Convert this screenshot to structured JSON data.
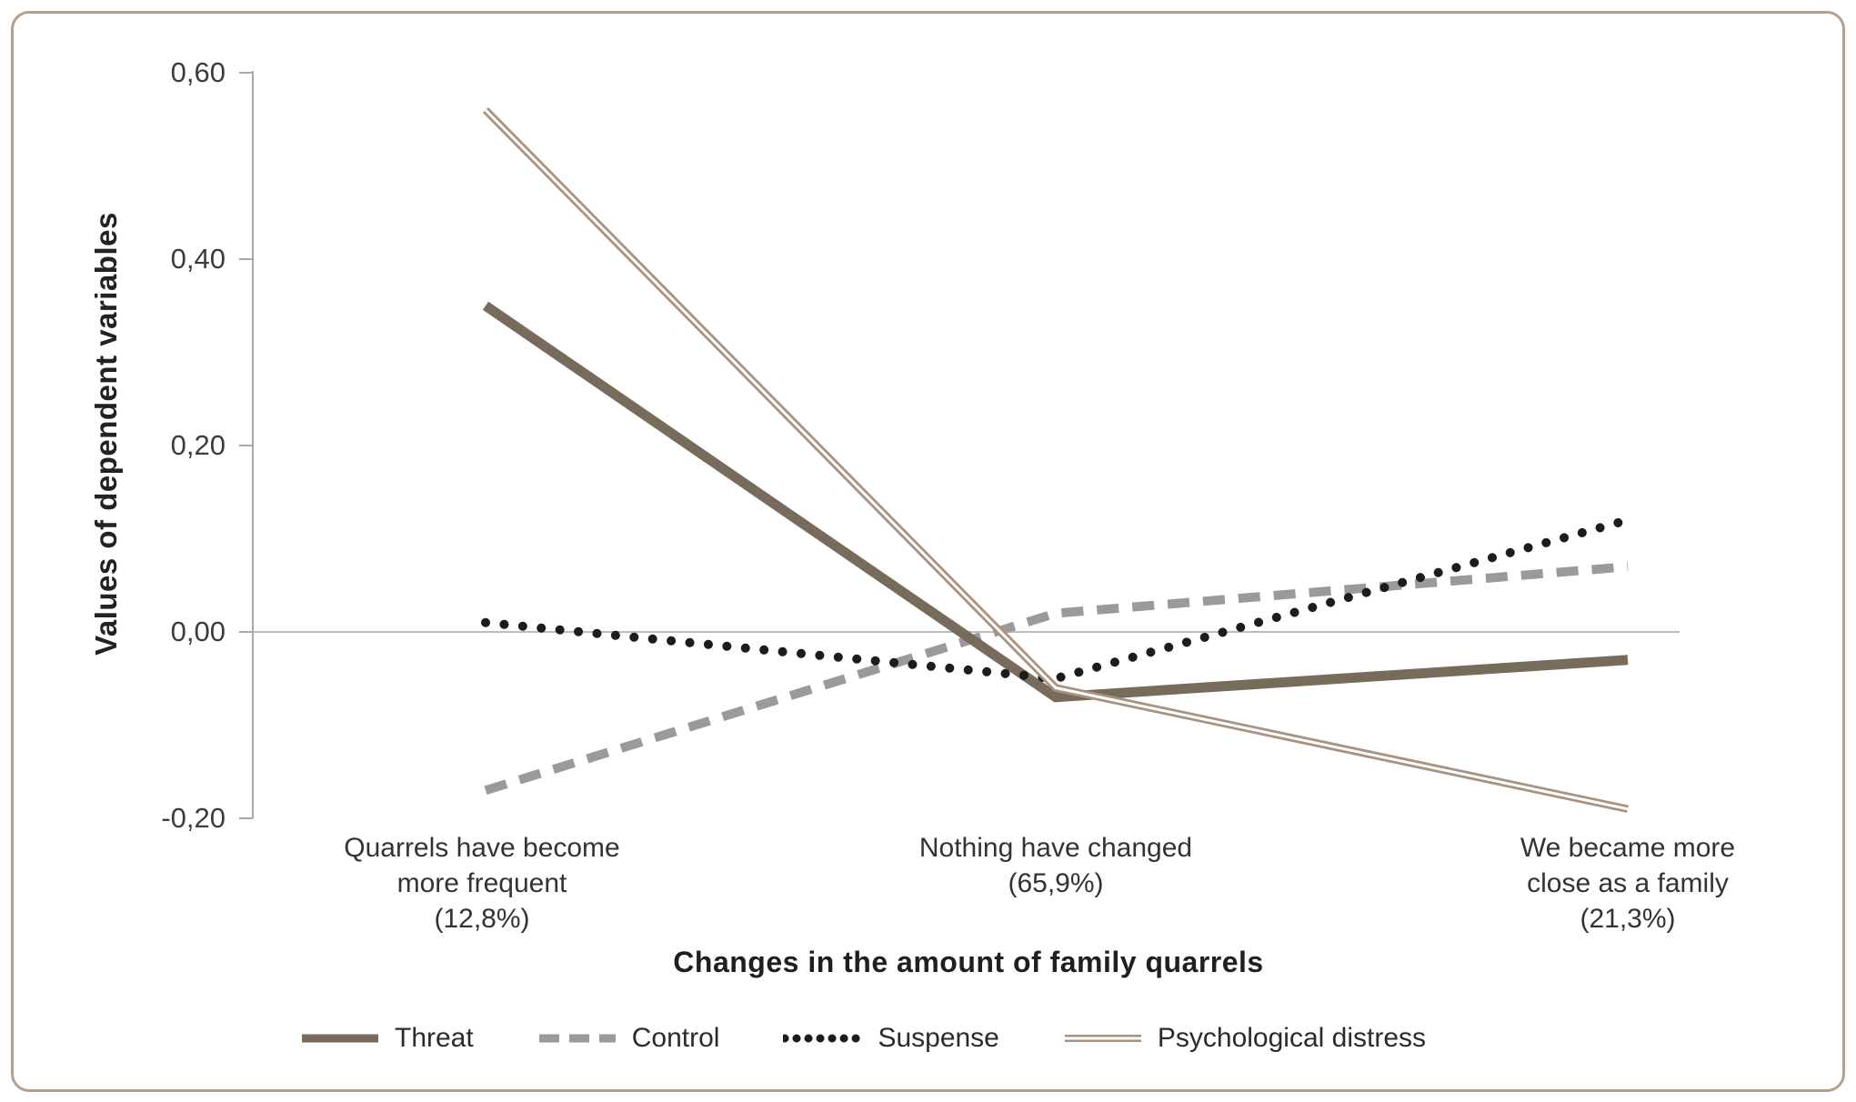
{
  "chart_data": {
    "type": "line",
    "title": "",
    "xlabel": "Changes in the amount of family quarrels",
    "ylabel": "Values of dependent variables",
    "categories": [
      "Quarrels have become more frequent (12,8%)",
      "Nothing have changed (65,9%)",
      "We became more close as a family (21,3%)"
    ],
    "category_lines": [
      [
        "Quarrels have become",
        "more frequent",
        "(12,8%)"
      ],
      [
        "Nothing have changed",
        "(65,9%)"
      ],
      [
        "We became more",
        "close as a family",
        "(21,3%)"
      ]
    ],
    "series": [
      {
        "name": "Threat",
        "style": "solid-thick",
        "color": "#776b5c",
        "values": [
          0.35,
          -0.07,
          -0.03
        ]
      },
      {
        "name": "Control",
        "style": "dashed",
        "color": "#9a9a9a",
        "values": [
          -0.17,
          0.02,
          0.07
        ]
      },
      {
        "name": "Suspense",
        "style": "dotted",
        "color": "#1c1c1c",
        "values": [
          0.01,
          -0.05,
          0.12
        ]
      },
      {
        "name": "Psychological distress",
        "style": "double-thin",
        "color": "#a79181",
        "values": [
          0.56,
          -0.06,
          -0.19
        ]
      }
    ],
    "ytick_labels": [
      "0,60",
      "0,40",
      "0,20",
      "0,00",
      "-0,20"
    ],
    "ytick_values": [
      0.6,
      0.4,
      0.2,
      0.0,
      -0.2
    ],
    "ylim": [
      -0.2,
      0.6
    ],
    "decimal_separator": ",",
    "grid": "horizontal zero line only",
    "legend_position": "bottom"
  },
  "colors": {
    "card_border": "#b3a090",
    "axis": "#a8a8a8",
    "gridline": "#bdbdbd",
    "tick_text": "#3c3c3c",
    "category_text": "#333333",
    "title_text": "#1f1f1f",
    "background": "#ffffff"
  }
}
